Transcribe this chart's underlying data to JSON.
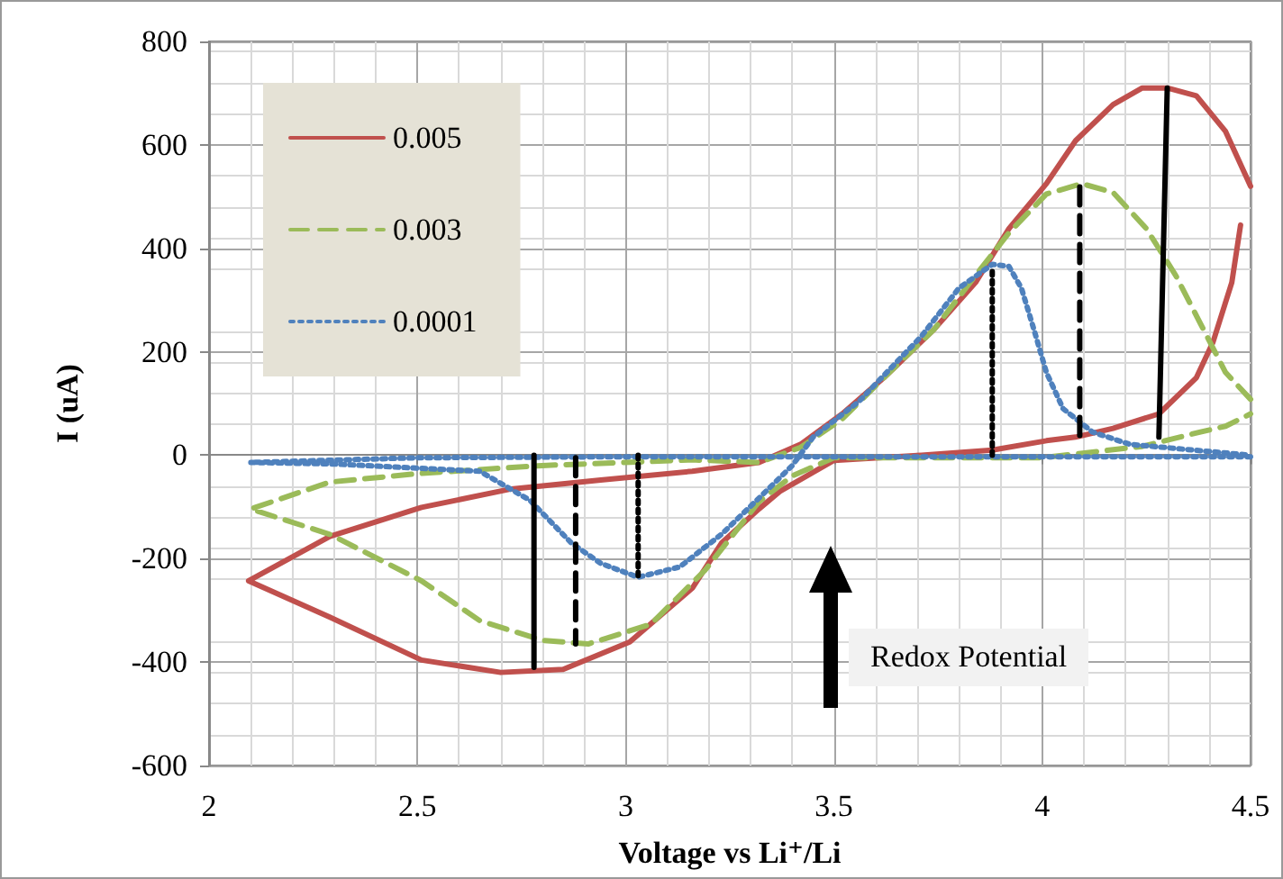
{
  "chart_data": {
    "type": "line",
    "xlabel": "Voltage vs Li⁺/Li",
    "ylabel": "I (uA)",
    "xlim": [
      2,
      4.5
    ],
    "xticks": [
      2,
      2.5,
      3,
      3.5,
      4,
      4.5
    ],
    "ylim": [
      -600,
      800
    ],
    "yticks": [
      -600,
      -400,
      -200,
      0,
      200,
      400,
      600,
      800
    ],
    "grid": true,
    "legend": "top left",
    "marker": "none",
    "series": [
      {
        "name": "0.005",
        "color": "#c0504d",
        "line_style": "solid",
        "x": [
          4.5,
          4.44,
          4.37,
          4.3,
          4.24,
          4.17,
          4.08,
          4.01,
          3.92,
          3.84,
          3.74,
          3.62,
          3.52,
          3.42,
          3.32,
          3.16,
          2.94,
          2.72,
          2.51,
          2.29,
          2.095,
          2.29,
          2.51,
          2.7,
          2.85,
          3.01,
          3.16,
          3.23,
          3.32,
          3.37,
          3.5,
          3.71,
          3.88,
          4.01,
          4.08,
          4.17,
          4.28,
          4.37,
          4.41,
          4.455,
          4.476
        ],
        "values": [
          520,
          626,
          695,
          710,
          710,
          678,
          608,
          525,
          438,
          334,
          243,
          150,
          80,
          21,
          -14,
          -31,
          -48,
          -66,
          -101,
          -157,
          -243,
          -313,
          -396,
          -420,
          -414,
          -361,
          -257,
          -170,
          -104,
          -70,
          -10,
          0,
          10,
          28,
          35,
          52,
          80,
          150,
          219,
          334,
          445
        ]
      },
      {
        "name": "0.003",
        "color": "#9bbb59",
        "line_style": "dashed",
        "x": [
          4.5,
          4.44,
          4.38,
          4.32,
          4.25,
          4.17,
          4.095,
          4.01,
          3.92,
          3.85,
          3.74,
          3.62,
          3.52,
          3.42,
          3.32,
          3.16,
          2.8,
          2.51,
          2.29,
          2.1,
          2.29,
          2.51,
          2.65,
          2.8,
          2.91,
          3.06,
          3.19,
          3.32,
          3.4,
          3.5,
          3.7,
          4.0,
          4.24,
          4.38,
          4.44,
          4.5
        ],
        "values": [
          108,
          160,
          254,
          348,
          438,
          508,
          525,
          505,
          430,
          358,
          243,
          150,
          70,
          15,
          -14,
          -9,
          -20,
          -35,
          -52,
          -104,
          -153,
          -243,
          -320,
          -358,
          -365,
          -327,
          -223,
          -90,
          -40,
          -5,
          -5,
          -5,
          17,
          45,
          56,
          80
        ]
      },
      {
        "name": "0.0001",
        "color": "#4f81bd",
        "line_style": "dotted",
        "x": [
          4.5,
          4.21,
          4.0,
          3.5,
          3.0,
          2.5,
          2.1,
          2.3,
          2.5,
          2.65,
          2.77,
          2.87,
          2.94,
          3.03,
          3.13,
          3.23,
          3.32,
          3.4,
          3.45,
          3.56,
          3.71,
          3.8,
          3.88,
          3.92,
          3.95,
          3.98,
          4.01,
          4.05,
          4.12,
          4.21,
          4.5
        ],
        "values": [
          -3,
          -3,
          -3,
          -3,
          -3,
          -5,
          -14,
          -17,
          -25,
          -31,
          -87,
          -170,
          -209,
          -236,
          -216,
          -153,
          -83,
          -20,
          35,
          104,
          230,
          323,
          369,
          365,
          323,
          243,
          160,
          90,
          45,
          21,
          0
        ]
      },
      {
        "color": "#000000",
        "line_style": "solid",
        "x": [
          2.78,
          2.78
        ],
        "values": [
          0,
          -410
        ]
      },
      {
        "color": "#000000",
        "line_style": "dashed",
        "x": [
          2.88,
          2.88
        ],
        "values": [
          -5,
          -365
        ]
      },
      {
        "color": "#000000",
        "line_style": "dotted",
        "x": [
          3.03,
          3.03
        ],
        "values": [
          0,
          -233
        ]
      },
      {
        "color": "#000000",
        "line_style": "dotted",
        "x": [
          3.88,
          3.88
        ],
        "values": [
          0,
          365
        ]
      },
      {
        "color": "#000000",
        "line_style": "dashed",
        "x": [
          4.09,
          4.09
        ],
        "values": [
          38,
          525
        ]
      },
      {
        "color": "#000000",
        "line_style": "solid",
        "x": [
          4.28,
          4.3
        ],
        "values": [
          35,
          710
        ]
      }
    ],
    "annotations": [
      "Redox Potential"
    ]
  }
}
